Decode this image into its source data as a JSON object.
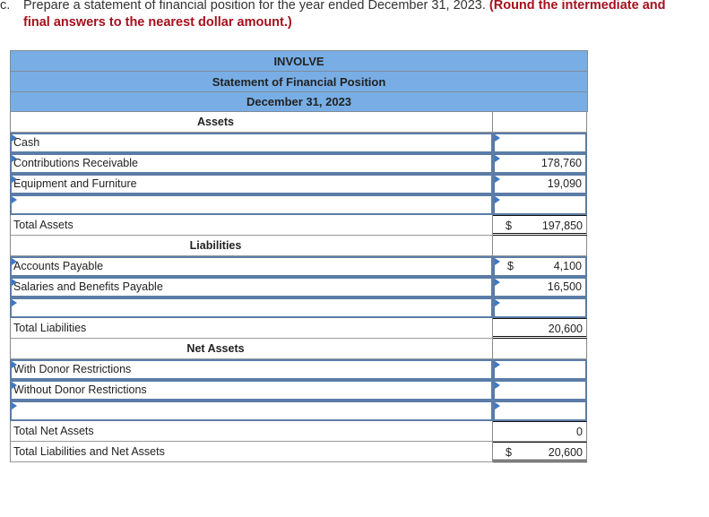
{
  "instructions": {
    "label": "c.",
    "text": "Prepare a statement of financial position for the year ended December 31, 2023.",
    "emphasis_line1": "(Round the intermediate and",
    "emphasis_line2": "final answers to the nearest dollar amount.)"
  },
  "statement": {
    "entity": "INVOLVE",
    "title": "Statement of Financial Position",
    "date": "December 31, 2023",
    "sections": {
      "assets": {
        "heading": "Assets",
        "rows": [
          {
            "label": "Cash",
            "value": "",
            "currency": ""
          },
          {
            "label": "Contributions Receivable",
            "value": "178,760",
            "currency": ""
          },
          {
            "label": "Equipment and Furniture",
            "value": "19,090",
            "currency": ""
          },
          {
            "label": "",
            "value": "",
            "currency": ""
          }
        ],
        "total": {
          "label": "Total Assets",
          "currency": "$",
          "value": "197,850"
        }
      },
      "liabilities": {
        "heading": "Liabilities",
        "rows": [
          {
            "label": "Accounts Payable",
            "value": "4,100",
            "currency": "$"
          },
          {
            "label": "Salaries and Benefits Payable",
            "value": "16,500",
            "currency": ""
          },
          {
            "label": "",
            "value": "",
            "currency": ""
          }
        ],
        "total": {
          "label": "Total Liabilities",
          "currency": "",
          "value": "20,600"
        }
      },
      "net_assets": {
        "heading": "Net Assets",
        "rows": [
          {
            "label": "With Donor Restrictions",
            "value": "",
            "currency": ""
          },
          {
            "label": "Without Donor Restrictions",
            "value": "",
            "currency": ""
          },
          {
            "label": "",
            "value": "",
            "currency": ""
          }
        ],
        "total": {
          "label": "Total Net Assets",
          "currency": "",
          "value": "0"
        },
        "grand_total": {
          "label": "Total Liabilities and Net Assets",
          "currency": "$",
          "value": "20,600"
        }
      }
    }
  },
  "colors": {
    "header_fill": "#78aee5",
    "input_border": "#5b7ca7",
    "instruction_emphasis": "#a5101c",
    "input_flag": "#3d78c8"
  }
}
